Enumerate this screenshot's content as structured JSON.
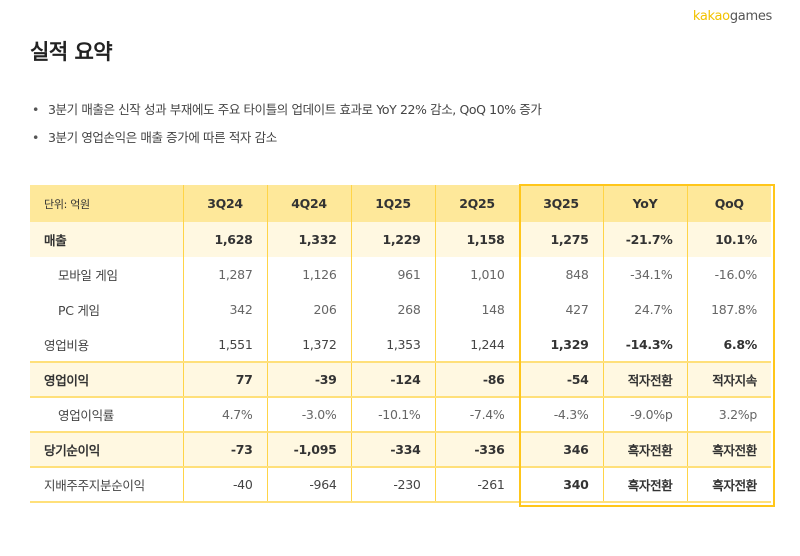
{
  "logo": {
    "part1": "kakao",
    "part2": "games"
  },
  "page_title": "실적 요약",
  "bullets": [
    "3분기 매출은 신작 성과 부재에도 주요 타이틀의 업데이트 효과로 YoY 22% 감소, QoQ 10% 증가",
    "3분기 영업손익은 매출 증가에 따른 적자 감소"
  ],
  "table": {
    "unit": "단위: 억원",
    "headers": [
      "3Q24",
      "4Q24",
      "1Q25",
      "2Q25",
      "3Q25",
      "YoY",
      "QoQ"
    ],
    "rows": [
      {
        "label": "매출",
        "values": [
          "1,628",
          "1,332",
          "1,229",
          "1,158",
          "1,275",
          "-21.7%",
          "10.1%"
        ]
      },
      {
        "label": "모바일 게임",
        "values": [
          "1,287",
          "1,126",
          "961",
          "1,010",
          "848",
          "-34.1%",
          "-16.0%"
        ]
      },
      {
        "label": "PC 게임",
        "values": [
          "342",
          "206",
          "268",
          "148",
          "427",
          "24.7%",
          "187.8%"
        ]
      },
      {
        "label": "영업비용",
        "values": [
          "1,551",
          "1,372",
          "1,353",
          "1,244",
          "1,329",
          "-14.3%",
          "6.8%"
        ]
      },
      {
        "label": "영업이익",
        "values": [
          "77",
          "-39",
          "-124",
          "-86",
          "-54",
          "적자전환",
          "적자지속"
        ]
      },
      {
        "label": "영업이익률",
        "values": [
          "4.7%",
          "-3.0%",
          "-10.1%",
          "-7.4%",
          "-4.3%",
          "-9.0%p",
          "3.2%p"
        ]
      },
      {
        "label": "당기순이익",
        "values": [
          "-73",
          "-1,095",
          "-334",
          "-336",
          "346",
          "흑자전환",
          "흑자전환"
        ]
      },
      {
        "label": "지배주주지분순이익",
        "values": [
          "-40",
          "-964",
          "-230",
          "-261",
          "340",
          "흑자전환",
          "흑자전환"
        ]
      }
    ]
  },
  "colors": {
    "accent": "#ffc61a",
    "header_bg": "#fee89a",
    "highlight_row": "#fff8e1"
  }
}
